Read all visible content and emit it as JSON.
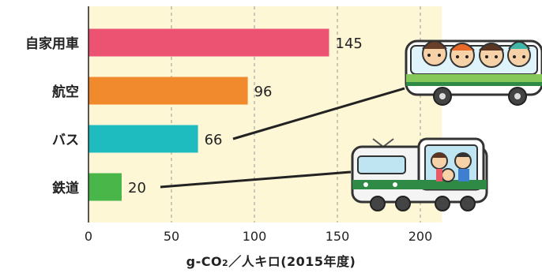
{
  "chart_data": {
    "type": "bar",
    "orientation": "horizontal",
    "categories": [
      "自家用車",
      "航空",
      "バス",
      "鉄道"
    ],
    "values": [
      145,
      96,
      66,
      20
    ],
    "colors": [
      "#ec5272",
      "#f08a2c",
      "#1fbcbf",
      "#49b649"
    ],
    "x_ticks": [
      0,
      50,
      100,
      150,
      200
    ],
    "xlim": [
      0,
      213
    ],
    "xlabel_main": "g-CO",
    "xlabel_sub": "2",
    "xlabel_rest": "／人キロ(2015年度)",
    "grid": "vertical dashed",
    "plot_background": "#fdf7d6"
  },
  "illustrations": {
    "bus": "bus-with-children-illustration",
    "train": "train-with-family-illustration"
  }
}
